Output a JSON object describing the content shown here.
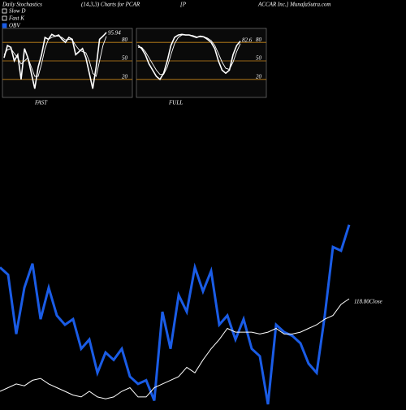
{
  "header": [
    "Daily Stochastics",
    "(14,3,3) Charts for PCAR",
    "[P",
    "ACCAR Inc.] MunafaSutra.com"
  ],
  "chart_data": [
    {
      "type": "line",
      "label": "FAST",
      "annotation": "95.94",
      "ylim": [
        0,
        100
      ],
      "yticks": [
        20,
        50,
        80
      ],
      "grid_color": "#c8861a",
      "series": [
        {
          "name": "Slow D",
          "color": "#ffffff",
          "values": [
            60,
            68,
            70,
            62,
            55,
            45,
            50,
            55,
            40,
            25,
            25,
            45,
            70,
            85,
            88,
            90,
            90,
            88,
            84,
            85,
            84,
            75,
            68,
            65,
            63,
            50,
            30,
            25,
            50,
            75,
            90
          ]
        },
        {
          "name": "Fast K",
          "color": "#ffffff",
          "values": [
            55,
            75,
            72,
            50,
            60,
            20,
            70,
            55,
            30,
            5,
            40,
            60,
            88,
            85,
            93,
            90,
            92,
            85,
            80,
            88,
            85,
            60,
            65,
            70,
            55,
            30,
            5,
            40,
            85,
            90,
            96
          ]
        }
      ]
    },
    {
      "type": "line",
      "label": "FULL",
      "annotation": "82.6",
      "ylim": [
        0,
        100
      ],
      "yticks": [
        20,
        50,
        80
      ],
      "grid_color": "#c8861a",
      "series": [
        {
          "color": "#ffffff",
          "values": [
            72,
            72,
            65,
            55,
            45,
            35,
            28,
            28,
            40,
            60,
            78,
            88,
            92,
            92,
            92,
            91,
            89,
            89,
            89,
            87,
            83,
            75,
            62,
            48,
            38,
            36,
            48,
            65,
            78
          ]
        },
        {
          "color": "#ffffff",
          "values": [
            75,
            70,
            60,
            45,
            35,
            25,
            20,
            30,
            50,
            75,
            88,
            92,
            93,
            92,
            92,
            90,
            88,
            90,
            89,
            85,
            80,
            70,
            50,
            35,
            30,
            35,
            60,
            75,
            82
          ]
        }
      ]
    },
    {
      "type": "line",
      "annotation": "118.80Close",
      "ylim": [
        0,
        100
      ],
      "series": [
        {
          "name": "OBV",
          "color": "#1a5ce6",
          "values": [
            74,
            70,
            38,
            63,
            76,
            46,
            63,
            48,
            43,
            46,
            30,
            35,
            17,
            28,
            24,
            30,
            15,
            11,
            13,
            2,
            50,
            30,
            59,
            50,
            74,
            61,
            72,
            43,
            48,
            35,
            46,
            30,
            26,
            0,
            43,
            39,
            37,
            33,
            22,
            17,
            48,
            85,
            83,
            97
          ]
        },
        {
          "color": "#ffffff",
          "values": [
            7,
            9,
            11,
            10,
            13,
            14,
            11,
            9,
            7,
            5,
            4,
            7,
            4,
            3,
            4,
            7,
            9,
            4,
            4,
            9,
            11,
            13,
            15,
            20,
            17,
            24,
            30,
            35,
            41,
            39,
            39,
            39,
            38,
            39,
            41,
            38,
            38,
            39,
            41,
            43,
            46,
            48,
            54,
            57
          ]
        }
      ]
    }
  ]
}
